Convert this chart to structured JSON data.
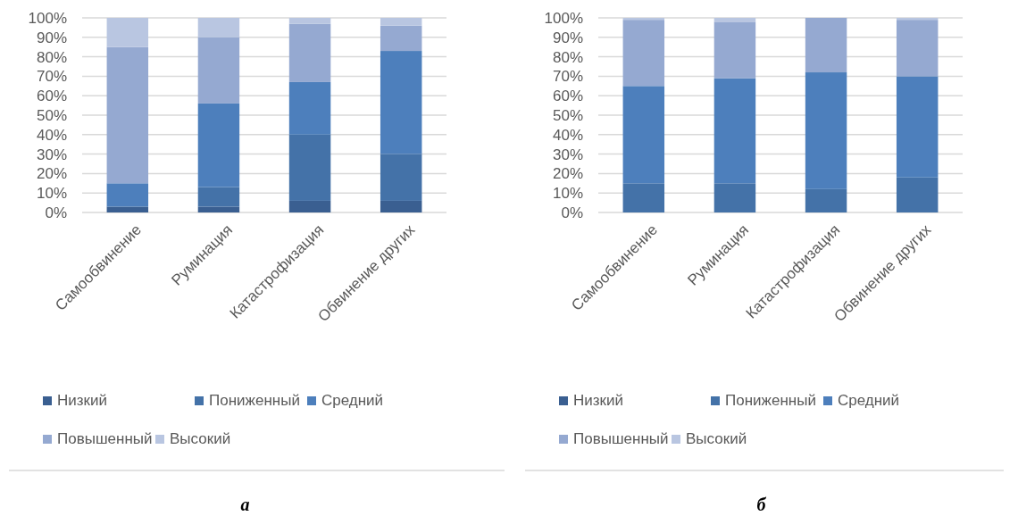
{
  "chart_data": [
    {
      "type": "bar",
      "stacked": true,
      "categories": [
        "Самообвинение",
        "Руминация",
        "Катастрофизация",
        "Обвинение других"
      ],
      "series": [
        {
          "name": "Низкий",
          "color": "#3a5f91",
          "values": [
            3,
            3,
            6,
            6
          ]
        },
        {
          "name": "Пониженный",
          "color": "#4472a8",
          "values": [
            0,
            10,
            34,
            24
          ]
        },
        {
          "name": "Средний",
          "color": "#4d7fbc",
          "values": [
            12,
            43,
            27,
            53
          ]
        },
        {
          "name": "Повышенный",
          "color": "#95a9d1",
          "values": [
            70,
            34,
            30,
            13
          ]
        },
        {
          "name": "Высокий",
          "color": "#b9c6e1",
          "values": [
            15,
            10,
            3,
            4
          ]
        }
      ],
      "ylim": [
        0,
        100
      ],
      "yticks": [
        {
          "value": 0,
          "label": "0%"
        },
        {
          "value": 10,
          "label": "10%"
        },
        {
          "value": 20,
          "label": "20%"
        },
        {
          "value": 30,
          "label": "30%"
        },
        {
          "value": 40,
          "label": "40%"
        },
        {
          "value": 50,
          "label": "50%"
        },
        {
          "value": 60,
          "label": "60%"
        },
        {
          "value": 70,
          "label": "70%"
        },
        {
          "value": 80,
          "label": "80%"
        },
        {
          "value": 90,
          "label": "90%"
        },
        {
          "value": 100,
          "label": "100%"
        }
      ],
      "grid": "y",
      "legend": "bottom",
      "annotations": [
        "а"
      ]
    },
    {
      "type": "bar",
      "stacked": true,
      "categories": [
        "Самообвинение",
        "Руминация",
        "Катастрофизация",
        "Обвинение других"
      ],
      "series": [
        {
          "name": "Низкий",
          "color": "#3a5f91",
          "values": [
            0,
            0,
            0,
            0
          ]
        },
        {
          "name": "Пониженный",
          "color": "#4472a8",
          "values": [
            15,
            15,
            12,
            18
          ]
        },
        {
          "name": "Средний",
          "color": "#4d7fbc",
          "values": [
            50,
            54,
            60,
            52
          ]
        },
        {
          "name": "Повышенный",
          "color": "#95a9d1",
          "values": [
            34,
            29,
            28,
            29
          ]
        },
        {
          "name": "Высокий",
          "color": "#b9c6e1",
          "values": [
            1,
            2,
            0,
            1
          ]
        }
      ],
      "ylim": [
        0,
        100
      ],
      "yticks": [
        {
          "value": 0,
          "label": "0%"
        },
        {
          "value": 10,
          "label": "10%"
        },
        {
          "value": 20,
          "label": "20%"
        },
        {
          "value": 30,
          "label": "30%"
        },
        {
          "value": 40,
          "label": "40%"
        },
        {
          "value": 50,
          "label": "50%"
        },
        {
          "value": 60,
          "label": "60%"
        },
        {
          "value": 70,
          "label": "70%"
        },
        {
          "value": 80,
          "label": "80%"
        },
        {
          "value": 90,
          "label": "90%"
        },
        {
          "value": 100,
          "label": "100%"
        }
      ],
      "grid": "y",
      "legend": "bottom",
      "annotations": [
        "б"
      ]
    }
  ]
}
